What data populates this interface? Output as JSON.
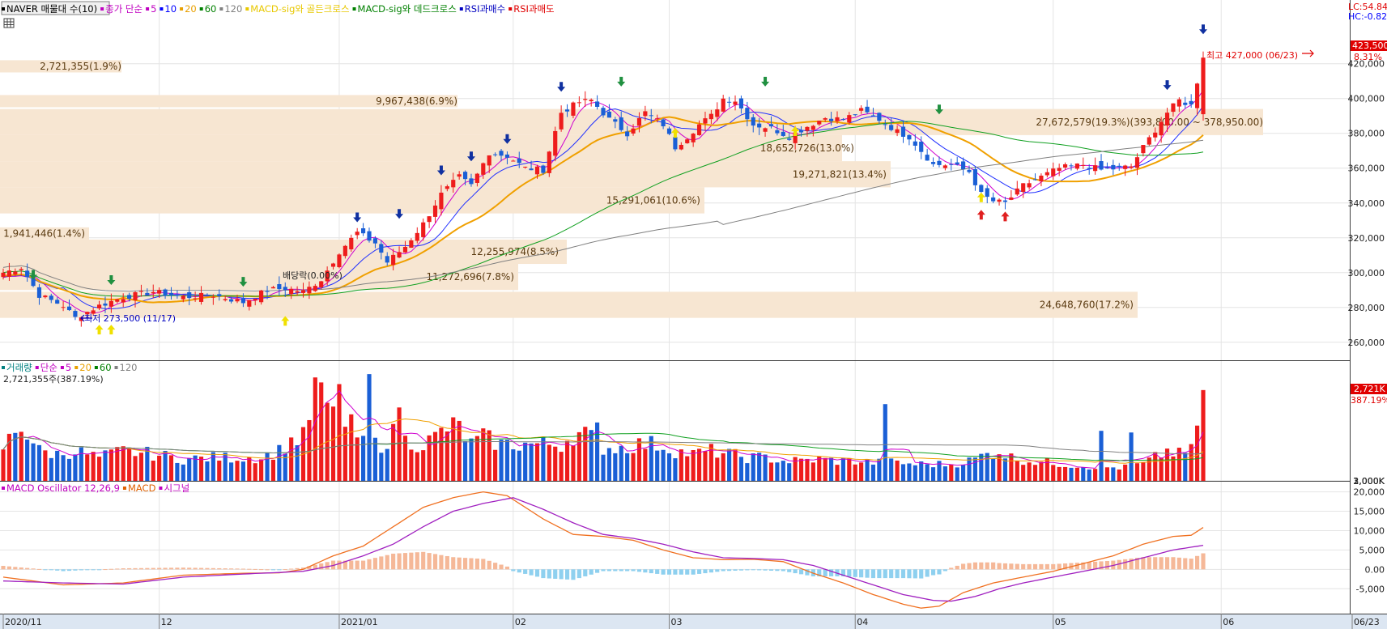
{
  "legend": {
    "price_items": [
      {
        "text": "NAVER 매물대 수(10)",
        "color": "#000000"
      },
      {
        "text": "종가 단순",
        "color": "#c000c0"
      },
      {
        "text": "5",
        "color": "#c000c0"
      },
      {
        "text": "10",
        "color": "#0000ff"
      },
      {
        "text": "20",
        "color": "#e8a000"
      },
      {
        "text": "60",
        "color": "#008000"
      },
      {
        "text": "120",
        "color": "#808080"
      },
      {
        "text": "MACD-sig와 골든크로스",
        "color": "#e8c800"
      },
      {
        "text": "MACD-sig와 데드크로스",
        "color": "#008000"
      },
      {
        "text": "RSI과매수",
        "color": "#0000c0"
      },
      {
        "text": "RSI과매도",
        "color": "#e00000"
      }
    ],
    "volume_items": [
      {
        "text": "거래량",
        "color": "#008080"
      },
      {
        "text": "단순",
        "color": "#c000c0"
      },
      {
        "text": "5",
        "color": "#c000c0"
      },
      {
        "text": "20",
        "color": "#e8a000"
      },
      {
        "text": "60",
        "color": "#008000"
      },
      {
        "text": "120",
        "color": "#808080"
      }
    ],
    "volume_last": "2,721,355주(387.19%)",
    "macd_items": [
      {
        "text": "MACD Oscillator 12,26,9",
        "color": "#c000c0"
      },
      {
        "text": "MACD",
        "color": "#e06000"
      },
      {
        "text": "시그널",
        "color": "#c000c0"
      }
    ]
  },
  "readouts": {
    "lc": "LC:54.84",
    "hc": "HC:-0.82",
    "last_price": "423,500",
    "last_pct": "8.31%",
    "vol_last": "2,721K",
    "vol_pct": "387.19%",
    "high_note": "최고 427,000 (06/23)",
    "low_note": "최저 273,500 (11/17)",
    "dividend_note": "배당락(0.00%)"
  },
  "chart_data": {
    "type": "candlestick",
    "x_ticks": [
      "2020/11",
      "12",
      "2021/01",
      "02",
      "03",
      "04",
      "05",
      "06",
      "06/23"
    ],
    "price_axis": {
      "ticks": [
        "260,000",
        "280,000",
        "300,000",
        "320,000",
        "340,000",
        "360,000",
        "380,000",
        "400,000",
        "420,000"
      ],
      "min": 252000,
      "max": 438000
    },
    "volume_axis": {
      "ticks": [
        "1,000K",
        "2,000K",
        "3,000K"
      ],
      "min": 0,
      "max": 3300000
    },
    "macd_axis": {
      "ticks": [
        "-5,000",
        "0.00",
        "5,000",
        "10,000",
        "15,000",
        "20,000"
      ],
      "min": -11000,
      "max": 22000
    },
    "volume_profile": [
      {
        "label": "2,721,355(1.9%)",
        "low": 415000,
        "high": 422000
      },
      {
        "label": "9,967,438(6.9%)",
        "low": 395000,
        "high": 402000
      },
      {
        "label": "27,672,579(19.3%)(393,800.00 ~ 378,950.00)",
        "low": 379000,
        "high": 394000
      },
      {
        "label": "18,652,726(13.0%)",
        "low": 364000,
        "high": 379000
      },
      {
        "label": "19,271,821(13.4%)",
        "low": 349000,
        "high": 364000
      },
      {
        "label": "15,291,061(10.6%)",
        "low": 334000,
        "high": 349000
      },
      {
        "label": "1,941,446(1.4%)",
        "low": 319000,
        "high": 326000
      },
      {
        "label": "12,255,974(8.5%)",
        "low": 305000,
        "high": 319000
      },
      {
        "label": "11,272,696(7.8%)",
        "low": 290000,
        "high": 305000
      },
      {
        "label": "24,648,760(17.2%)",
        "low": 274000,
        "high": 289000
      }
    ],
    "ohlc_anchors": [
      [
        0,
        300000
      ],
      [
        3,
        303000
      ],
      [
        6,
        287000
      ],
      [
        10,
        281000
      ],
      [
        12,
        274000
      ],
      [
        16,
        281000
      ],
      [
        20,
        286000
      ],
      [
        25,
        289000
      ],
      [
        30,
        286000
      ],
      [
        35,
        287000
      ],
      [
        40,
        283000
      ],
      [
        44,
        290000
      ],
      [
        47,
        291000
      ],
      [
        50,
        289000
      ],
      [
        53,
        296000
      ],
      [
        56,
        312000
      ],
      [
        59,
        323000
      ],
      [
        62,
        317000
      ],
      [
        64,
        306000
      ],
      [
        67,
        315000
      ],
      [
        70,
        328000
      ],
      [
        73,
        345000
      ],
      [
        76,
        355000
      ],
      [
        78,
        350000
      ],
      [
        81,
        369000
      ],
      [
        84,
        367000
      ],
      [
        87,
        360000
      ],
      [
        90,
        359000
      ],
      [
        93,
        392000
      ],
      [
        96,
        398000
      ],
      [
        98,
        399000
      ],
      [
        101,
        388000
      ],
      [
        104,
        380000
      ],
      [
        107,
        392000
      ],
      [
        110,
        385000
      ],
      [
        112,
        372000
      ],
      [
        114,
        378000
      ],
      [
        116,
        385000
      ],
      [
        118,
        390000
      ],
      [
        120,
        400000
      ],
      [
        122,
        399000
      ],
      [
        125,
        385000
      ],
      [
        128,
        383000
      ],
      [
        131,
        378000
      ],
      [
        134,
        384000
      ],
      [
        137,
        389000
      ],
      [
        140,
        388000
      ],
      [
        143,
        393000
      ],
      [
        146,
        388000
      ],
      [
        149,
        381000
      ],
      [
        151,
        378000
      ],
      [
        153,
        370000
      ],
      [
        155,
        362000
      ],
      [
        158,
        362000
      ],
      [
        161,
        358000
      ],
      [
        163,
        345000
      ],
      [
        165,
        341000
      ],
      [
        167,
        340000
      ],
      [
        170,
        350000
      ],
      [
        173,
        355000
      ],
      [
        176,
        360000
      ],
      [
        180,
        362000
      ],
      [
        183,
        359000
      ],
      [
        186,
        360000
      ],
      [
        188,
        361000
      ],
      [
        190,
        372000
      ],
      [
        192,
        382000
      ],
      [
        194,
        392000
      ],
      [
        196,
        399000
      ],
      [
        198,
        396000
      ],
      [
        200,
        423500
      ]
    ],
    "volume_anchors": [
      [
        0,
        1000000
      ],
      [
        3,
        1700000
      ],
      [
        6,
        900000
      ],
      [
        9,
        800000
      ],
      [
        12,
        900000
      ],
      [
        16,
        700000
      ],
      [
        20,
        900000
      ],
      [
        25,
        800000
      ],
      [
        30,
        650000
      ],
      [
        35,
        700000
      ],
      [
        40,
        700000
      ],
      [
        43,
        700000
      ],
      [
        46,
        900000
      ],
      [
        48,
        1200000
      ],
      [
        50,
        1300000
      ],
      [
        52,
        2600000
      ],
      [
        54,
        2300000
      ],
      [
        56,
        1500000
      ],
      [
        58,
        1600000
      ],
      [
        60,
        1100000
      ],
      [
        63,
        1100000
      ],
      [
        65,
        1400000
      ],
      [
        67,
        1200000
      ],
      [
        70,
        1100000
      ],
      [
        72,
        1300000
      ],
      [
        74,
        1600000
      ],
      [
        76,
        1600000
      ],
      [
        78,
        1100000
      ],
      [
        80,
        1300000
      ],
      [
        83,
        1100000
      ],
      [
        86,
        1100000
      ],
      [
        90,
        1100000
      ],
      [
        93,
        1100000
      ],
      [
        95,
        1400000
      ],
      [
        97,
        1400000
      ],
      [
        100,
        1000000
      ],
      [
        103,
        1000000
      ],
      [
        106,
        1100000
      ],
      [
        109,
        1100000
      ],
      [
        112,
        900000
      ],
      [
        115,
        800000
      ],
      [
        118,
        900000
      ],
      [
        121,
        800000
      ],
      [
        124,
        700000
      ],
      [
        127,
        700000
      ],
      [
        130,
        600000
      ],
      [
        133,
        600000
      ],
      [
        136,
        650000
      ],
      [
        139,
        600000
      ],
      [
        142,
        600000
      ],
      [
        145,
        550000
      ],
      [
        148,
        550000
      ],
      [
        152,
        500000
      ],
      [
        155,
        500000
      ],
      [
        158,
        500000
      ],
      [
        161,
        600000
      ],
      [
        164,
        800000
      ],
      [
        166,
        900000
      ],
      [
        168,
        700000
      ],
      [
        171,
        600000
      ],
      [
        174,
        550000
      ],
      [
        177,
        500000
      ],
      [
        180,
        450000
      ],
      [
        184,
        400000
      ],
      [
        187,
        400000
      ],
      [
        190,
        500000
      ],
      [
        192,
        700000
      ],
      [
        194,
        900000
      ],
      [
        196,
        800000
      ],
      [
        198,
        900000
      ],
      [
        200,
        2721355
      ]
    ],
    "spikes_volume": [
      [
        52,
        3100000
      ],
      [
        56,
        2900000
      ],
      [
        61,
        3200000
      ],
      [
        66,
        2200000
      ],
      [
        99,
        1750000
      ],
      [
        147,
        2300000
      ],
      [
        183,
        1500000
      ],
      [
        188,
        1450000
      ]
    ],
    "macd_line_anchors": [
      [
        0,
        -2000
      ],
      [
        10,
        -4000
      ],
      [
        20,
        -3500
      ],
      [
        30,
        -1500
      ],
      [
        40,
        -1000
      ],
      [
        46,
        -900
      ],
      [
        50,
        0
      ],
      [
        55,
        3500
      ],
      [
        60,
        6000
      ],
      [
        65,
        11000
      ],
      [
        70,
        16000
      ],
      [
        75,
        18500
      ],
      [
        80,
        20000
      ],
      [
        84,
        19000
      ],
      [
        90,
        13000
      ],
      [
        95,
        9000
      ],
      [
        100,
        8500
      ],
      [
        105,
        7500
      ],
      [
        110,
        5000
      ],
      [
        115,
        3000
      ],
      [
        120,
        2500
      ],
      [
        125,
        2600
      ],
      [
        130,
        2000
      ],
      [
        135,
        -1000
      ],
      [
        140,
        -3500
      ],
      [
        145,
        -6500
      ],
      [
        150,
        -9000
      ],
      [
        153,
        -10000
      ],
      [
        156,
        -9500
      ],
      [
        160,
        -6000
      ],
      [
        165,
        -3500
      ],
      [
        170,
        -2000
      ],
      [
        175,
        -500
      ],
      [
        180,
        1500
      ],
      [
        185,
        3500
      ],
      [
        190,
        6500
      ],
      [
        195,
        8500
      ],
      [
        198,
        8800
      ],
      [
        200,
        10800
      ]
    ],
    "signal_line_anchors": [
      [
        0,
        -3000
      ],
      [
        10,
        -3500
      ],
      [
        20,
        -3800
      ],
      [
        30,
        -2000
      ],
      [
        40,
        -1200
      ],
      [
        46,
        -800
      ],
      [
        50,
        -500
      ],
      [
        55,
        1000
      ],
      [
        60,
        3500
      ],
      [
        65,
        6500
      ],
      [
        70,
        11000
      ],
      [
        75,
        15000
      ],
      [
        80,
        17000
      ],
      [
        85,
        18500
      ],
      [
        90,
        15500
      ],
      [
        95,
        12000
      ],
      [
        100,
        9000
      ],
      [
        105,
        8000
      ],
      [
        110,
        6500
      ],
      [
        115,
        4500
      ],
      [
        120,
        3000
      ],
      [
        125,
        2800
      ],
      [
        130,
        2500
      ],
      [
        135,
        1000
      ],
      [
        140,
        -1500
      ],
      [
        145,
        -4000
      ],
      [
        150,
        -6500
      ],
      [
        155,
        -8000
      ],
      [
        158,
        -8200
      ],
      [
        162,
        -7000
      ],
      [
        166,
        -5000
      ],
      [
        170,
        -3500
      ],
      [
        175,
        -2000
      ],
      [
        180,
        -500
      ],
      [
        185,
        1000
      ],
      [
        190,
        3000
      ],
      [
        195,
        5000
      ],
      [
        200,
        6200
      ]
    ]
  }
}
